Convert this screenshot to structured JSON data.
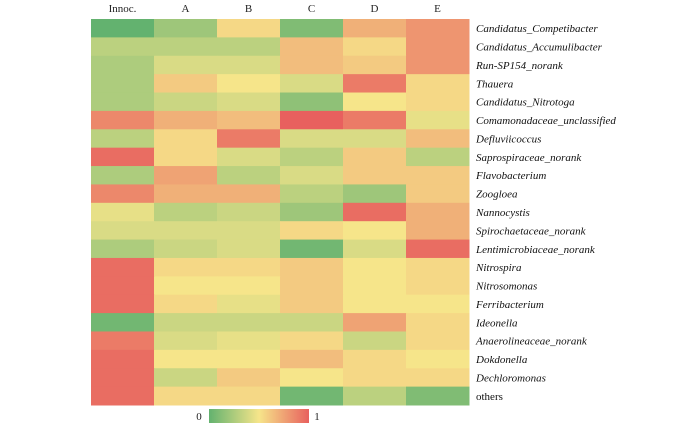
{
  "chart_data": {
    "type": "heatmap",
    "columns": [
      "Innoc.",
      "A",
      "B",
      "C",
      "D",
      "E"
    ],
    "rows": [
      "Candidatus_Competibacter",
      "Candidatus_Accumulibacter",
      "Run-SP154_norank",
      "Thauera",
      "Candidatus_Nitrotoga",
      "Comamonadaceae_unclassified",
      "Defluviicoccus",
      "Saprospiraceae_norank",
      "Flavobacterium",
      "Zoogloea",
      "Nannocystis",
      "Spirochaetaceae_norank",
      "Lentimicrobiaceae_norank",
      "Nitrospira",
      "Nitrosomonas",
      "Ferribacterium",
      "Ideonella",
      "Anaerolineaceae_norank",
      "Dokdonella",
      "Dechloromonas",
      "others"
    ],
    "italic_rows": [
      true,
      true,
      true,
      true,
      true,
      true,
      true,
      true,
      true,
      true,
      true,
      true,
      true,
      true,
      true,
      true,
      true,
      true,
      true,
      true,
      false
    ],
    "values": [
      [
        0.0,
        0.2,
        0.55,
        0.1,
        0.7,
        0.8
      ],
      [
        0.3,
        0.3,
        0.3,
        0.65,
        0.55,
        0.8
      ],
      [
        0.25,
        0.4,
        0.4,
        0.65,
        0.6,
        0.8
      ],
      [
        0.25,
        0.6,
        0.5,
        0.4,
        0.9,
        0.55
      ],
      [
        0.25,
        0.35,
        0.4,
        0.15,
        0.5,
        0.55
      ],
      [
        0.85,
        0.7,
        0.65,
        1.0,
        0.9,
        0.45
      ],
      [
        0.3,
        0.55,
        0.9,
        0.4,
        0.4,
        0.65
      ],
      [
        0.95,
        0.55,
        0.4,
        0.3,
        0.6,
        0.3
      ],
      [
        0.25,
        0.75,
        0.3,
        0.4,
        0.6,
        0.6
      ],
      [
        0.85,
        0.7,
        0.7,
        0.3,
        0.2,
        0.6
      ],
      [
        0.45,
        0.3,
        0.35,
        0.2,
        0.95,
        0.7
      ],
      [
        0.4,
        0.4,
        0.4,
        0.55,
        0.5,
        0.7
      ],
      [
        0.25,
        0.35,
        0.4,
        0.05,
        0.4,
        0.95
      ],
      [
        0.95,
        0.55,
        0.55,
        0.6,
        0.5,
        0.55
      ],
      [
        0.95,
        0.5,
        0.5,
        0.6,
        0.5,
        0.55
      ],
      [
        0.95,
        0.55,
        0.45,
        0.6,
        0.5,
        0.5
      ],
      [
        0.05,
        0.35,
        0.35,
        0.35,
        0.75,
        0.55
      ],
      [
        0.9,
        0.4,
        0.45,
        0.55,
        0.35,
        0.55
      ],
      [
        0.95,
        0.5,
        0.5,
        0.65,
        0.55,
        0.5
      ],
      [
        0.95,
        0.35,
        0.6,
        0.5,
        0.55,
        0.55
      ],
      [
        0.95,
        0.55,
        0.55,
        0.05,
        0.3,
        0.1
      ]
    ],
    "colorbar": {
      "min_label": "0",
      "max_label": "1",
      "min": 0,
      "max": 1
    },
    "colors": {
      "low": "#63b26f",
      "mid": "#f6e58a",
      "high": "#e8605e"
    },
    "title": "",
    "xlabel": "",
    "ylabel": ""
  }
}
